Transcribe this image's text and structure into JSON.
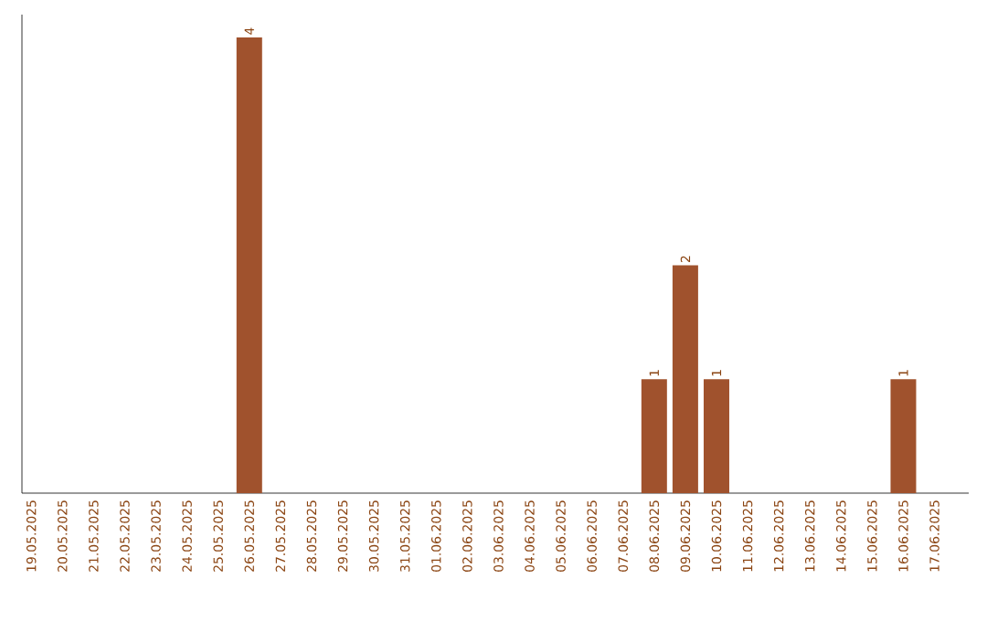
{
  "chart_data": {
    "type": "bar",
    "categories": [
      "19.05.2025",
      "20.05.2025",
      "21.05.2025",
      "22.05.2025",
      "23.05.2025",
      "24.05.2025",
      "25.05.2025",
      "26.05.2025",
      "27.05.2025",
      "28.05.2025",
      "29.05.2025",
      "30.05.2025",
      "31.05.2025",
      "01.06.2025",
      "02.06.2025",
      "03.06.2025",
      "04.06.2025",
      "05.06.2025",
      "06.06.2025",
      "07.06.2025",
      "08.06.2025",
      "09.06.2025",
      "10.06.2025",
      "11.06.2025",
      "12.06.2025",
      "13.06.2025",
      "14.06.2025",
      "15.06.2025",
      "16.06.2025",
      "17.06.2025"
    ],
    "values": [
      0,
      0,
      0,
      0,
      0,
      0,
      0,
      4,
      0,
      0,
      0,
      0,
      0,
      0,
      0,
      0,
      0,
      0,
      0,
      0,
      1,
      2,
      1,
      0,
      0,
      0,
      0,
      0,
      1,
      0
    ],
    "value_labels": [
      null,
      null,
      null,
      null,
      null,
      null,
      null,
      "4",
      null,
      null,
      null,
      null,
      null,
      null,
      null,
      null,
      null,
      null,
      null,
      null,
      "1",
      "2",
      "1",
      null,
      null,
      null,
      null,
      null,
      "1",
      null
    ],
    "color": "#a0522d",
    "tick_labels": "x"
  }
}
